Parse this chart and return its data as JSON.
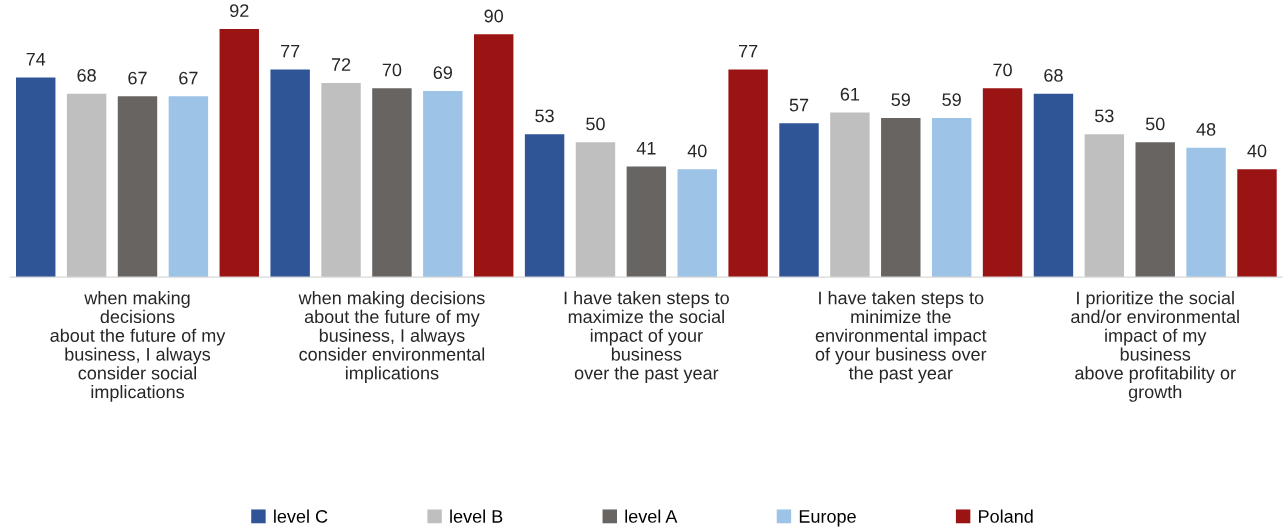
{
  "chart_data": {
    "type": "bar",
    "categories": [
      "when making\ndecisions\nabout the future of my\nbusiness, I always\nconsider social\nimplications",
      "when making decisions\nabout the future of my\nbusiness, I always\nconsider environmental\nimplications",
      "I have taken steps to\nmaximize the social\nimpact of your\nbusiness\nover the past year",
      "I have taken steps to\nminimize the\nenvironmental impact\nof your business over\nthe past year",
      "I prioritize the social\nand/or environmental\nimpact of my\nbusiness\nabove profitability or\ngrowth"
    ],
    "series": [
      {
        "name": "level C",
        "color": "#2f5597",
        "values": [
          74,
          77,
          53,
          57,
          68
        ]
      },
      {
        "name": "level B",
        "color": "#bfbfbf",
        "values": [
          68,
          72,
          50,
          61,
          53
        ]
      },
      {
        "name": "level A",
        "color": "#686462",
        "values": [
          67,
          70,
          41,
          59,
          50
        ]
      },
      {
        "name": "Europe",
        "color": "#9dc3e6",
        "values": [
          67,
          69,
          40,
          59,
          48
        ]
      },
      {
        "name": "Poland",
        "color": "#9b1414",
        "values": [
          92,
          90,
          77,
          70,
          40
        ]
      }
    ],
    "data_labels": true,
    "grid": false,
    "legend": "bottom"
  }
}
